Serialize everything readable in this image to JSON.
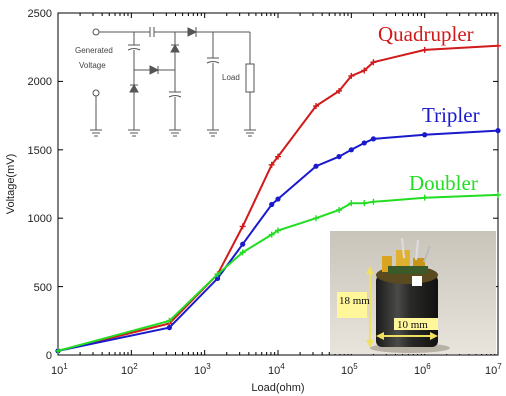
{
  "chart_data": {
    "type": "line",
    "x_scale": "log",
    "xlim": [
      10,
      10000000
    ],
    "ylim": [
      0,
      2500
    ],
    "xlabel": "Load(ohm)",
    "ylabel": "Voltage(mV)",
    "y_ticks": [
      "0",
      "500",
      "1000",
      "1500",
      "2000",
      "2500"
    ],
    "x_ticks": [
      {
        "base": "10",
        "exp": "1"
      },
      {
        "base": "10",
        "exp": "2"
      },
      {
        "base": "10",
        "exp": "3"
      },
      {
        "base": "10",
        "exp": "4"
      },
      {
        "base": "10",
        "exp": "5"
      },
      {
        "base": "10",
        "exp": "6"
      },
      {
        "base": "10",
        "exp": "7"
      }
    ],
    "grid": false,
    "series": [
      {
        "name": "Quadrupler",
        "color": "#d11a1a",
        "x": [
          10,
          330,
          1500,
          3300,
          8200,
          10000,
          33000,
          68000,
          100000,
          150000,
          200000,
          1000000,
          10000000
        ],
        "y": [
          30,
          230,
          590,
          940,
          1390,
          1450,
          1820,
          1930,
          2040,
          2080,
          2140,
          2230,
          2260
        ]
      },
      {
        "name": "Tripler",
        "color": "#1a1acc",
        "x": [
          10,
          330,
          1500,
          3300,
          8200,
          10000,
          33000,
          68000,
          100000,
          150000,
          200000,
          1000000,
          10000000
        ],
        "y": [
          30,
          200,
          560,
          810,
          1100,
          1140,
          1380,
          1450,
          1500,
          1550,
          1580,
          1610,
          1640
        ]
      },
      {
        "name": "Doubler",
        "color": "#22dd22",
        "x": [
          10,
          330,
          1500,
          3300,
          8200,
          10000,
          33000,
          68000,
          100000,
          150000,
          200000,
          1000000,
          10000000
        ],
        "y": [
          30,
          250,
          590,
          750,
          880,
          910,
          1000,
          1060,
          1110,
          1110,
          1120,
          1150,
          1170
        ]
      }
    ]
  },
  "inset_circuit": {
    "source_label_line1": "Generated",
    "source_label_line2": "Voltage",
    "load_label": "Load"
  },
  "inset_photo": {
    "height_label": "18 mm",
    "width_label": "10 mm"
  }
}
